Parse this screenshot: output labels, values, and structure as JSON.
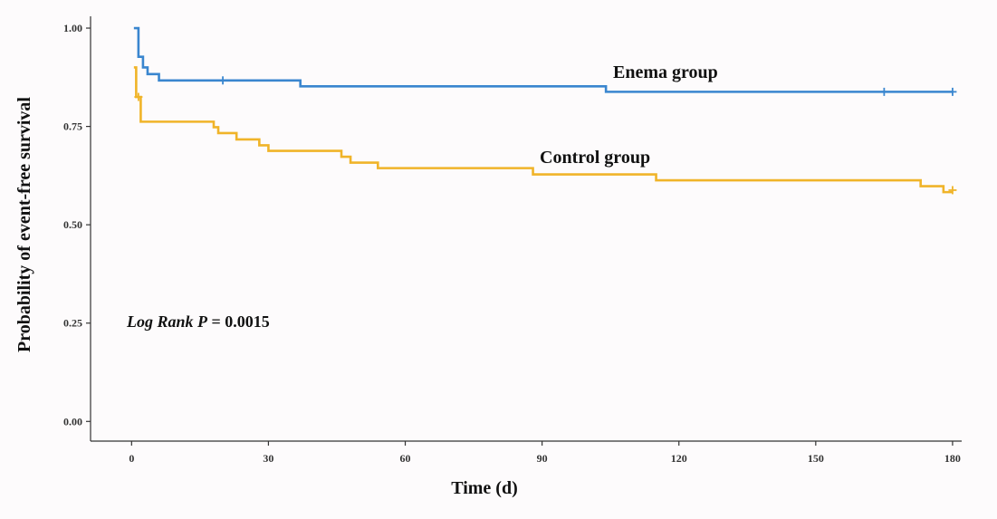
{
  "chart_data": {
    "type": "line",
    "xlabel": "Time (d)",
    "ylabel": "Probability of event-free survival",
    "xlim": [
      -9,
      182
    ],
    "ylim": [
      -0.05,
      1.03
    ],
    "xticks": [
      0,
      30,
      60,
      90,
      120,
      150,
      180
    ],
    "xtick_labels": [
      "0",
      "30",
      "60",
      "90",
      "120",
      "150",
      "180"
    ],
    "yticks": [
      0,
      0.25,
      0.5,
      0.75,
      1.0
    ],
    "ytick_labels": [
      "0.00",
      "0.25",
      "0.50",
      "0.75",
      "1.00"
    ],
    "grid": false,
    "annotation": {
      "prefix": "Log Rank P",
      "rest": " = 0.0015"
    },
    "series": [
      {
        "name": "Enema group",
        "color": "#3a86cf",
        "steps": [
          [
            0.5,
            1.0
          ],
          [
            1.5,
            0.927
          ],
          [
            2.5,
            0.9
          ],
          [
            3.5,
            0.883
          ],
          [
            6,
            0.867
          ],
          [
            37,
            0.852
          ],
          [
            104,
            0.838
          ],
          [
            180,
            0.838
          ]
        ],
        "censored": [
          [
            20,
            0.867
          ],
          [
            165,
            0.838
          ],
          [
            180,
            0.838
          ]
        ]
      },
      {
        "name": "Control group",
        "color": "#f0b429",
        "steps": [
          [
            0.5,
            0.9
          ],
          [
            1.0,
            0.825
          ],
          [
            2.0,
            0.762
          ],
          [
            18,
            0.748
          ],
          [
            19,
            0.733
          ],
          [
            23,
            0.717
          ],
          [
            28,
            0.702
          ],
          [
            30,
            0.688
          ],
          [
            46,
            0.673
          ],
          [
            48,
            0.658
          ],
          [
            54,
            0.644
          ],
          [
            88,
            0.628
          ],
          [
            115,
            0.613
          ],
          [
            173,
            0.598
          ],
          [
            178,
            0.583
          ],
          [
            180,
            0.583
          ]
        ],
        "censored": [
          [
            1.5,
            0.825
          ],
          [
            180,
            0.588
          ]
        ]
      }
    ]
  }
}
